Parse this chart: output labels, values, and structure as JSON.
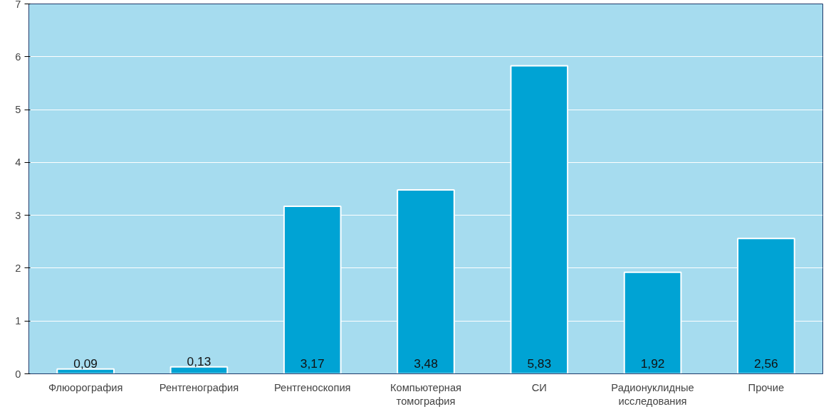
{
  "chart_data": {
    "type": "bar",
    "categories": [
      "Флюорография",
      "Рентгенография",
      "Рентгеноскопия",
      "Компьютерная томография",
      "СИ",
      "Радионуклидные исследования",
      "Прочие"
    ],
    "values": [
      0.09,
      0.13,
      3.17,
      3.48,
      5.83,
      1.92,
      2.56
    ],
    "color": "#00a3d4",
    "ylim": [
      0,
      7
    ],
    "yticks": [
      0,
      1,
      2,
      3,
      4,
      5,
      6,
      7
    ],
    "grid": "y",
    "value_labels": [
      "0,09",
      "0,13",
      "3,17",
      "3,48",
      "5,83",
      "1,92",
      "2,56"
    ]
  }
}
